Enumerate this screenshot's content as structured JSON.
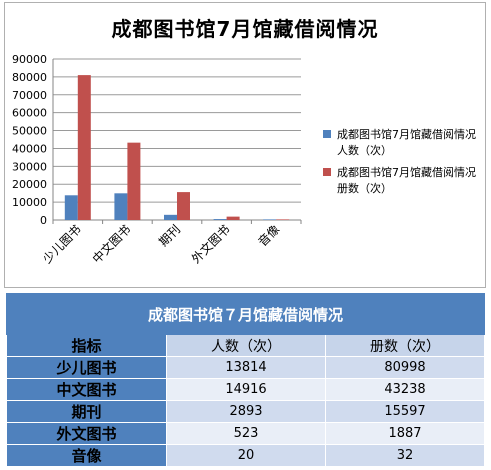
{
  "chart_data": {
    "type": "bar",
    "title": "成都图书馆7月馆藏借阅情况",
    "categories": [
      "少儿图书",
      "中文图书",
      "期刊",
      "外文图书",
      "音像"
    ],
    "series": [
      {
        "name": "成都图书馆7月馆藏借阅情况 人数（次）",
        "color": "#4f81bd",
        "values": [
          13814,
          14916,
          2893,
          523,
          20
        ]
      },
      {
        "name": "成都图书馆7月馆藏借阅情况 册数（次）",
        "color": "#c0504d",
        "values": [
          80998,
          43238,
          15597,
          1887,
          32
        ]
      }
    ],
    "ylim": [
      0,
      90000
    ],
    "yticks": [
      0,
      10000,
      20000,
      30000,
      40000,
      50000,
      60000,
      70000,
      80000,
      90000
    ],
    "grid": true,
    "legend_position": "right"
  },
  "table": {
    "title": "成都图书馆７月馆藏借阅情况",
    "header": {
      "label": "指标",
      "col1": "人数（次）",
      "col2": "册数（次）"
    },
    "rows": [
      {
        "label": "少儿图书",
        "people": "13814",
        "volumes": "80998"
      },
      {
        "label": "中文图书",
        "people": "14916",
        "volumes": "43238"
      },
      {
        "label": "期刊",
        "people": "2893",
        "volumes": "15597"
      },
      {
        "label": "外文图书",
        "people": "523",
        "volumes": "1887"
      },
      {
        "label": "音像",
        "people": "20",
        "volumes": "32"
      }
    ]
  }
}
